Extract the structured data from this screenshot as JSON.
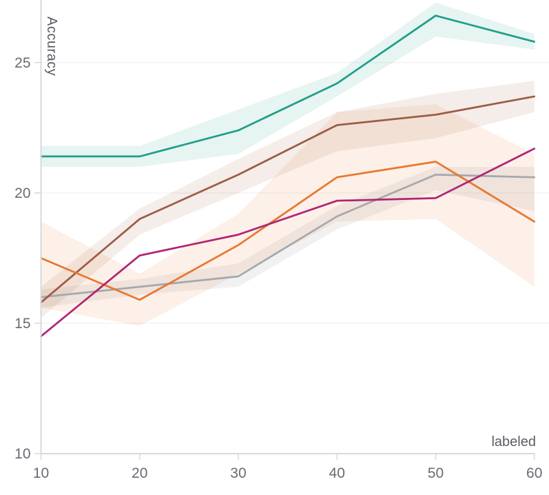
{
  "chart_data": {
    "type": "line",
    "title": "",
    "xlabel": "labeled",
    "ylabel": "Accuracy",
    "x": [
      10,
      20,
      30,
      40,
      50,
      60
    ],
    "xlim": [
      10,
      60
    ],
    "ylim": [
      10,
      27.4
    ],
    "xticks": [
      10,
      20,
      30,
      40,
      50,
      60
    ],
    "yticks": [
      10,
      15,
      20,
      25
    ],
    "grid": "horizontal",
    "legend_position": "none",
    "series": [
      {
        "name": "gray",
        "color": "#a5a8ab",
        "values": [
          16.0,
          16.4,
          16.8,
          19.1,
          20.7,
          20.6
        ],
        "band_low": [
          15.6,
          16.1,
          16.4,
          18.6,
          20.1,
          19.3
        ],
        "band_high": [
          16.3,
          16.7,
          17.3,
          19.5,
          21.0,
          21.0
        ],
        "band_opacity": 0.16
      },
      {
        "name": "brown",
        "color": "#9e5b43",
        "values": [
          15.8,
          19.0,
          20.7,
          22.6,
          23.0,
          23.7
        ],
        "band_low": [
          15.2,
          18.4,
          20.0,
          21.6,
          22.1,
          23.1
        ],
        "band_high": [
          16.4,
          19.4,
          21.3,
          23.1,
          23.8,
          24.3
        ],
        "band_opacity": 0.11
      },
      {
        "name": "orange",
        "color": "#e8772e",
        "values": [
          17.5,
          15.9,
          18.0,
          20.6,
          21.2,
          18.9
        ],
        "band_low": [
          15.6,
          14.9,
          16.9,
          18.9,
          19.0,
          16.4
        ],
        "band_high": [
          18.9,
          16.9,
          19.2,
          23.1,
          23.4,
          21.5
        ],
        "band_opacity": 0.11
      },
      {
        "name": "magenta",
        "color": "#b02573",
        "values": [
          14.5,
          17.6,
          18.4,
          19.7,
          19.8,
          21.7
        ]
      },
      {
        "name": "teal",
        "color": "#1f9e89",
        "values": [
          21.4,
          21.4,
          22.4,
          24.2,
          26.8,
          25.8
        ],
        "band_low": [
          21.0,
          21.0,
          21.5,
          23.7,
          26.0,
          25.5
        ],
        "band_high": [
          21.8,
          21.8,
          23.2,
          24.6,
          27.3,
          26.1
        ],
        "band_opacity": 0.11
      }
    ],
    "style": {
      "grid_color": "#ededef",
      "axis_color": "#d9d9dd",
      "tick_label_color": "#6a6a73",
      "axis_title_color": "#5b5b64",
      "line_width": 2.75
    }
  }
}
